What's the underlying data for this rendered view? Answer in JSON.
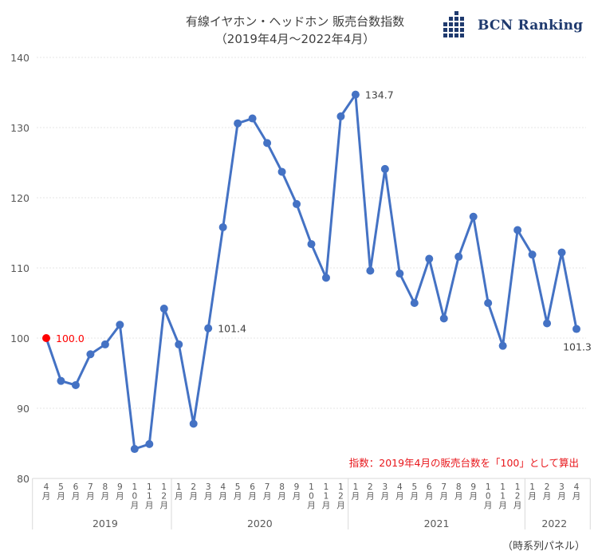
{
  "header": {
    "title_line1": "有線イヤホン・ヘッドホン 販売台数指数",
    "title_line2": "（2019年4月〜2022年4月）"
  },
  "logo": {
    "icon": "bcn-grid-logo-icon",
    "text": "BCN Ranking",
    "color": "#1f3a6e"
  },
  "footnote": "指数：2019年4月の販売台数を「100」として算出",
  "source_label": "（時系列パネル）",
  "colors": {
    "line": "#4472c4",
    "highlight": "#ff0000",
    "footnote": "#e8161b",
    "text": "#404040"
  },
  "chart_data": {
    "type": "line",
    "title": "有線イヤホン・ヘッドホン 販売台数指数",
    "subtitle": "（2019年4月〜2022年4月）",
    "xlabel": "",
    "ylabel": "",
    "ylim": [
      80,
      140
    ],
    "yticks": [
      80,
      90,
      100,
      110,
      120,
      130,
      140
    ],
    "grid": true,
    "legend": "none",
    "categories": [
      "4月",
      "5月",
      "6月",
      "7月",
      "8月",
      "9月",
      "10月",
      "11月",
      "12月",
      "1月",
      "2月",
      "3月",
      "4月",
      "5月",
      "6月",
      "7月",
      "8月",
      "9月",
      "10月",
      "11月",
      "12月",
      "1月",
      "2月",
      "3月",
      "4月",
      "5月",
      "6月",
      "7月",
      "8月",
      "9月",
      "10月",
      "11月",
      "12月",
      "1月",
      "2月",
      "3月",
      "4月"
    ],
    "years": [
      {
        "label": "2019",
        "start": 0,
        "end": 8
      },
      {
        "label": "2020",
        "start": 9,
        "end": 20
      },
      {
        "label": "2021",
        "start": 21,
        "end": 32
      },
      {
        "label": "2022",
        "start": 33,
        "end": 36
      }
    ],
    "series": [
      {
        "name": "販売台数指数",
        "values": [
          100.0,
          93.9,
          93.3,
          97.7,
          99.1,
          101.9,
          84.2,
          84.9,
          104.2,
          99.1,
          87.8,
          101.4,
          115.8,
          130.6,
          131.3,
          127.8,
          123.7,
          119.1,
          113.4,
          108.6,
          131.6,
          134.7,
          109.6,
          124.1,
          109.2,
          105.0,
          111.3,
          102.8,
          111.6,
          117.3,
          105.0,
          98.9,
          115.4,
          111.9,
          102.1,
          112.2,
          101.3
        ]
      }
    ],
    "annotations": [
      {
        "index": 0,
        "label": "100.0",
        "highlight": true
      },
      {
        "index": 11,
        "label": "101.4"
      },
      {
        "index": 21,
        "label": "134.7"
      },
      {
        "index": 36,
        "label": "101.3"
      }
    ]
  }
}
